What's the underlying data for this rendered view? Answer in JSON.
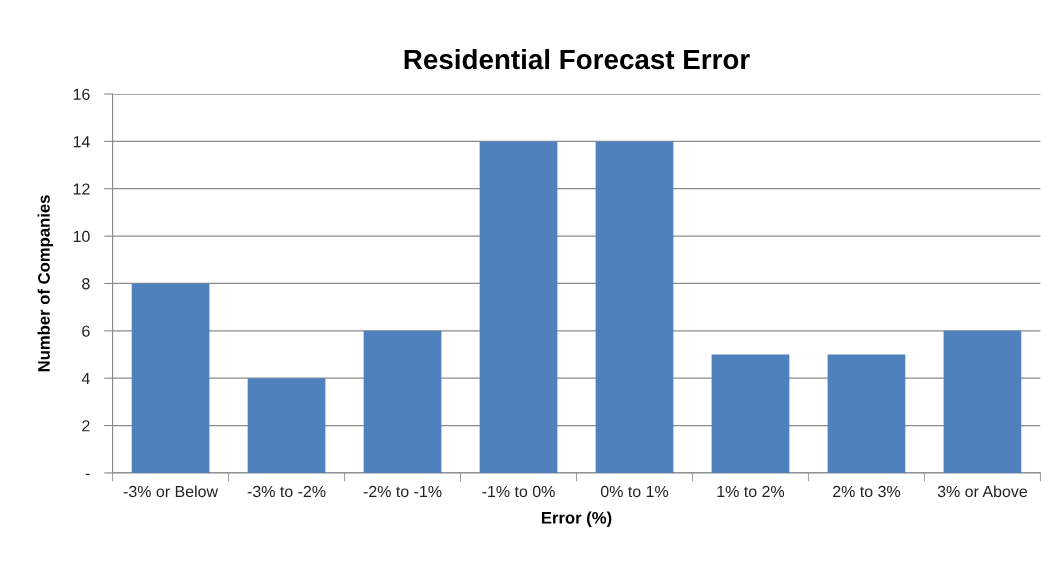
{
  "chart_data": {
    "type": "bar",
    "title": "Residential Forecast Error",
    "xlabel": "Error (%)",
    "ylabel": "Number of Companies",
    "categories": [
      "-3% or Below",
      "-3% to -2%",
      "-2% to -1%",
      "-1% to 0%",
      "0% to 1%",
      "1% to 2%",
      "2% to 3%",
      "3% or Above"
    ],
    "values": [
      8,
      4,
      6,
      14,
      14,
      5,
      5,
      6
    ],
    "color": "#4f81bd",
    "ylim": [
      0,
      16
    ],
    "yticks": [
      {
        "value": 0,
        "label": "-"
      },
      2,
      4,
      6,
      8,
      10,
      12,
      14,
      16
    ],
    "grid": "y",
    "legend": false
  }
}
